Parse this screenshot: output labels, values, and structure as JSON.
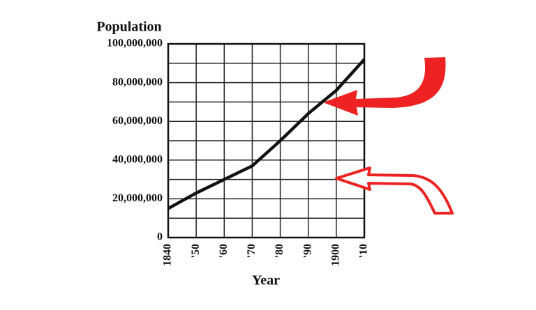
{
  "chart_data": {
    "type": "line",
    "title": "Population",
    "x_label": "Year",
    "x": [
      1840,
      1850,
      1860,
      1870,
      1880,
      1890,
      1900,
      1910
    ],
    "series": [
      {
        "color": "#111111",
        "values": [
          15000000,
          23000000,
          30000000,
          37000000,
          50000000,
          64000000,
          76000000,
          92000000
        ]
      }
    ],
    "xlim": [
      1840,
      1910
    ],
    "xticks": [
      1840,
      {
        "value": 1850,
        "label": "'50"
      },
      {
        "value": 1860,
        "label": "'60"
      },
      {
        "value": 1870,
        "label": "'70"
      },
      {
        "value": 1880,
        "label": "'80"
      },
      {
        "value": 1890,
        "label": "'90"
      },
      1900,
      {
        "value": 1910,
        "label": "'10"
      }
    ],
    "ylim": [
      0,
      100000000
    ],
    "yticks": [
      0,
      {
        "value": 20000000,
        "label": "20,000,000"
      },
      {
        "value": 40000000,
        "label": "40,000,000"
      },
      {
        "value": 60000000,
        "label": "60,000,000"
      },
      {
        "value": 80000000,
        "label": "80,000,000"
      },
      {
        "value": 100000000,
        "label": "100,000,000"
      }
    ],
    "yminorticks": [
      10000000,
      30000000,
      50000000,
      70000000,
      90000000
    ],
    "grid": true
  }
}
